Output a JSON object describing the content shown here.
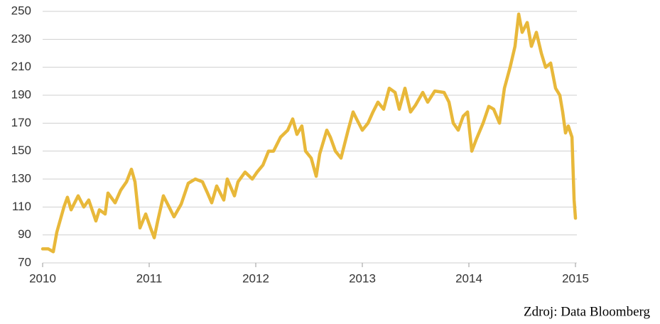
{
  "chart_data": {
    "type": "line",
    "source": "Zdroj: Data Bloomberg",
    "x": [
      2010,
      2010.053,
      2010.1,
      2010.133,
      2010.2,
      2010.233,
      2010.267,
      2010.333,
      2010.387,
      2010.433,
      2010.5,
      2010.533,
      2010.587,
      2010.613,
      2010.68,
      2010.733,
      2010.787,
      2010.833,
      2010.867,
      2010.913,
      2010.967,
      2011.013,
      2011.047,
      2011.08,
      2011.133,
      2011.187,
      2011.233,
      2011.3,
      2011.367,
      2011.433,
      2011.5,
      2011.547,
      2011.587,
      2011.633,
      2011.7,
      2011.733,
      2011.8,
      2011.833,
      2011.9,
      2011.967,
      2012.013,
      2012.067,
      2012.12,
      2012.167,
      2012.233,
      2012.3,
      2012.347,
      2012.387,
      2012.433,
      2012.467,
      2012.52,
      2012.567,
      2012.6,
      2012.667,
      2012.7,
      2012.747,
      2012.8,
      2012.867,
      2012.913,
      2012.953,
      2013,
      2013.053,
      2013.1,
      2013.147,
      2013.2,
      2013.253,
      2013.307,
      2013.347,
      2013.4,
      2013.453,
      2013.5,
      2013.567,
      2013.613,
      2013.68,
      2013.767,
      2013.813,
      2013.853,
      2013.9,
      2013.947,
      2013.987,
      2014.027,
      2014.067,
      2014.133,
      2014.187,
      2014.233,
      2014.287,
      2014.333,
      2014.387,
      2014.433,
      2014.467,
      2014.5,
      2014.547,
      2014.587,
      2014.633,
      2014.68,
      2014.72,
      2014.767,
      2014.813,
      2014.853,
      2014.88,
      2014.907,
      2014.933,
      2014.967,
      2014.987,
      2015
    ],
    "series": [
      {
        "color": "#e8b83a",
        "values": [
          80,
          80,
          78,
          92,
          110,
          117,
          108,
          118,
          110,
          115,
          100,
          108,
          105,
          120,
          113,
          122,
          128,
          137,
          128,
          95,
          105,
          95,
          88,
          100,
          118,
          110,
          103,
          112,
          127,
          130,
          128,
          120,
          113,
          125,
          115,
          130,
          118,
          128,
          135,
          130,
          135,
          140,
          150,
          150,
          160,
          165,
          173,
          162,
          168,
          150,
          145,
          132,
          148,
          165,
          160,
          150,
          145,
          165,
          178,
          172,
          165,
          170,
          178,
          185,
          180,
          195,
          192,
          180,
          195,
          178,
          183,
          192,
          185,
          193,
          192,
          185,
          170,
          165,
          175,
          178,
          150,
          158,
          170,
          182,
          180,
          170,
          195,
          210,
          225,
          248,
          235,
          242,
          225,
          235,
          220,
          210,
          213,
          195,
          190,
          178,
          163,
          168,
          160,
          115,
          102
        ]
      }
    ],
    "xlim": [
      2010,
      2015
    ],
    "xticks": [
      2010,
      2011,
      2012,
      2013,
      2014,
      2015
    ],
    "ylim": [
      70,
      250
    ],
    "yticks": [
      70,
      90,
      110,
      130,
      150,
      170,
      190,
      210,
      230,
      250
    ],
    "grid": true
  }
}
